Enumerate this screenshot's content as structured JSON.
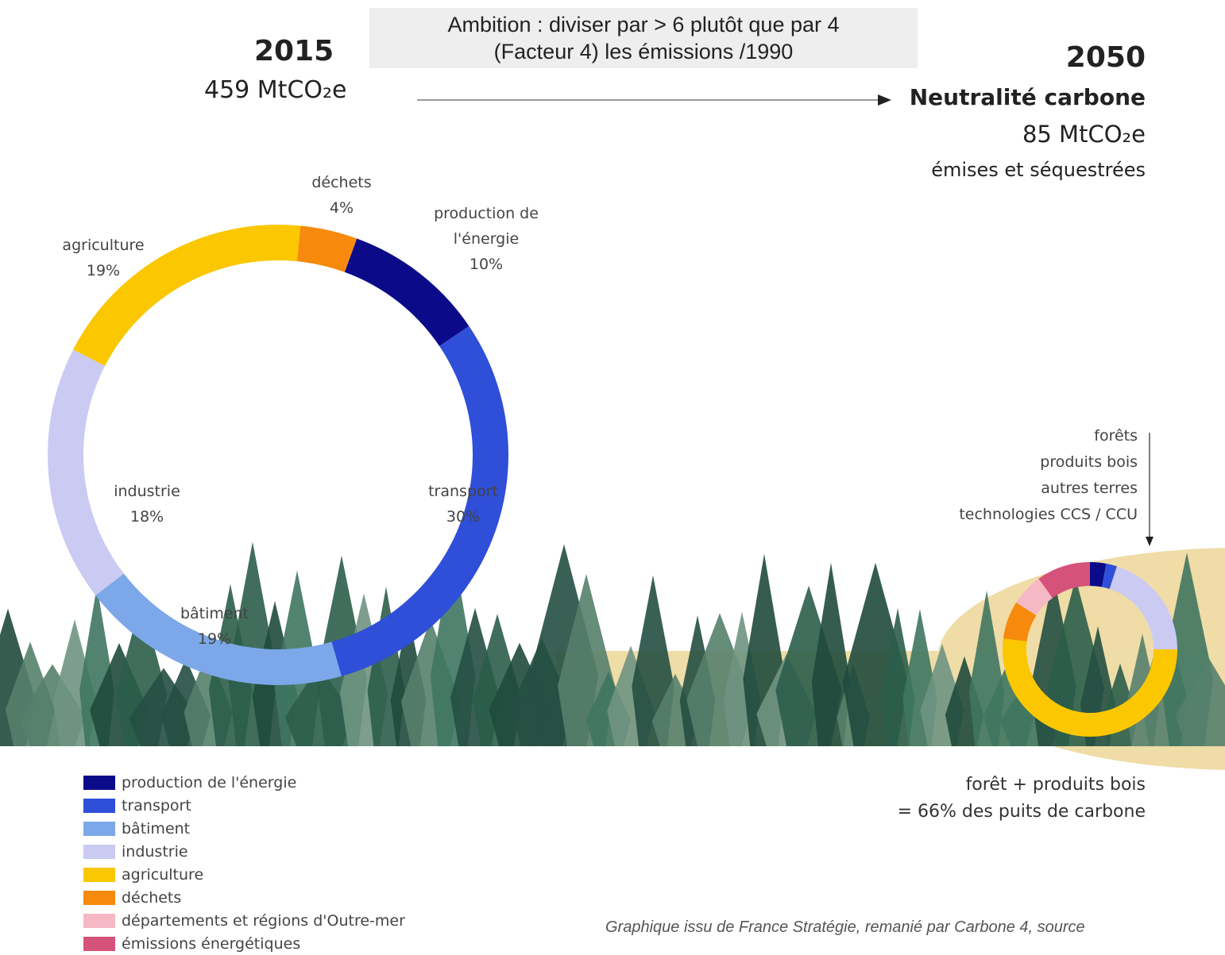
{
  "banner": [
    "Ambition : diviser par > 6 plutôt que par 4",
    "(Facteur 4) les émissions /1990"
  ],
  "left": {
    "year": "2015",
    "amount": "459 MtCO₂e"
  },
  "right": {
    "year": "2050",
    "title": "Neutralité carbone",
    "amount": "85 MtCO₂e",
    "note": "émises et séquestrées"
  },
  "sinks": [
    "forêts",
    "produits bois",
    "autres terres",
    "technologies CCS / CCU"
  ],
  "sinks_note": [
    "forêt + produits bois",
    "= 66% des puits de carbone"
  ],
  "chart_data": [
    {
      "type": "pie",
      "categories": [
        "production de l'énergie",
        "transport",
        "bâtiment",
        "industrie",
        "agriculture",
        "déchets"
      ],
      "values": [
        10,
        30,
        19,
        18,
        19,
        4
      ],
      "value_labels": [
        "10%",
        "30%",
        "19%",
        "18%",
        "19%",
        "4%"
      ],
      "colors": [
        "#0b0b8a",
        "#2f4fd8",
        "#7ca8ea",
        "#cbcaf3",
        "#fbc700",
        "#f78a0c"
      ]
    },
    {
      "type": "pie",
      "categories": [
        "production de l'énergie",
        "transport",
        "industrie",
        "agriculture",
        "déchets",
        "départements et régions d'Outre-mer",
        "émissions énergétiques"
      ],
      "values": [
        3,
        2,
        20,
        52,
        7,
        6,
        10
      ],
      "colors": [
        "#0b0b8a",
        "#2f4fd8",
        "#cbcaf3",
        "#fbc700",
        "#f78a0c",
        "#f5b8c4",
        "#d5527a"
      ]
    }
  ],
  "legend": [
    {
      "name": "production de l'énergie",
      "color": "#0b0b8a"
    },
    {
      "name": "transport",
      "color": "#2f4fd8"
    },
    {
      "name": "bâtiment",
      "color": "#7ca8ea"
    },
    {
      "name": "industrie",
      "color": "#cbcaf3"
    },
    {
      "name": "agriculture",
      "color": "#fbc700"
    },
    {
      "name": "déchets",
      "color": "#f78a0c"
    },
    {
      "name": "départements et régions d'Outre-mer",
      "color": "#f5b8c4"
    },
    {
      "name": "émissions énergétiques",
      "color": "#d5527a"
    }
  ],
  "source": "Graphique issu de France Stratégie, remanié par Carbone 4, source"
}
